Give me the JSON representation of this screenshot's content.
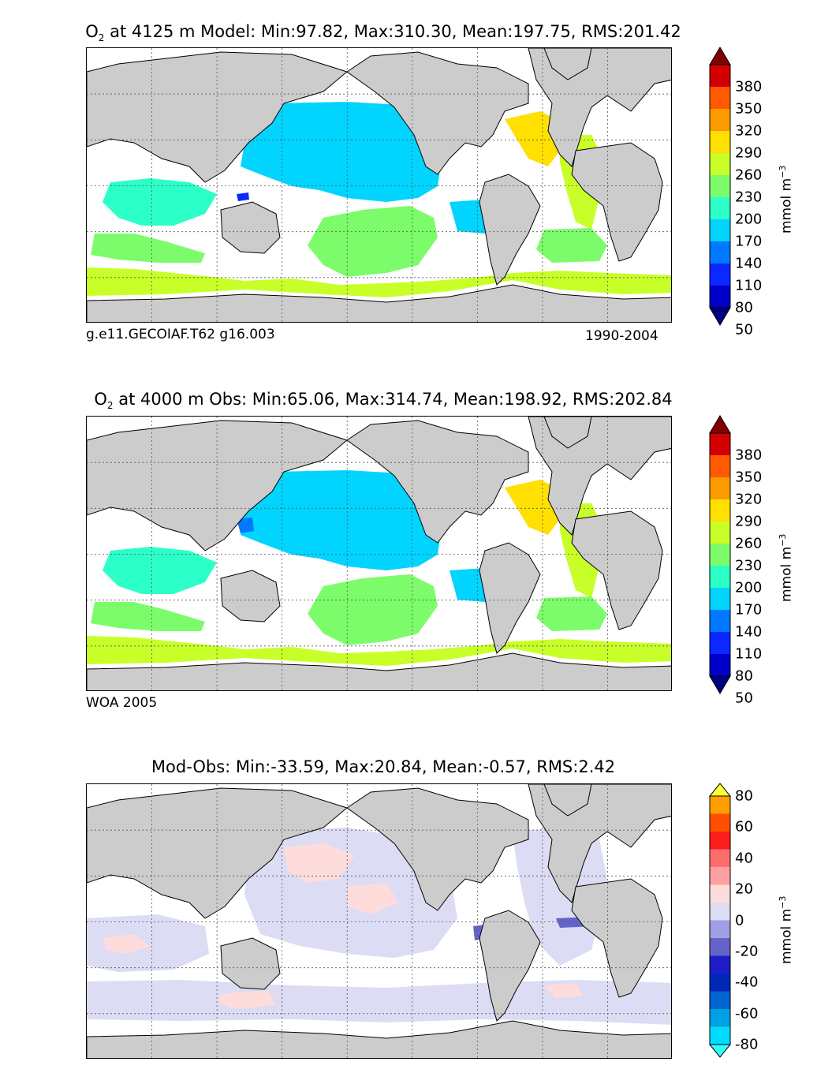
{
  "panels": {
    "model": {
      "title_species": "O",
      "title_sub": "2",
      "title_rest": " at 4125 m Model: Min:97.82, Max:310.30, Mean:197.75, RMS:201.42",
      "caption_left": "g.e11.GECOIAF.T62 g16.003",
      "caption_right": "1990-2004"
    },
    "obs": {
      "title_species": "O",
      "title_sub": "2",
      "title_rest": " at 4000 m Obs: Min:65.06, Max:314.74, Mean:198.92, RMS:202.84",
      "caption_left": "WOA 2005"
    },
    "diff": {
      "title": "Mod-Obs: Min:-33.59, Max:20.84, Mean:-0.57, RMS:2.42"
    }
  },
  "colorbar_abs": {
    "labels": [
      "380",
      "350",
      "320",
      "290",
      "260",
      "230",
      "200",
      "170",
      "140",
      "110",
      "80",
      "50"
    ],
    "colors": [
      "#7f0000",
      "#d40000",
      "#ff5a00",
      "#ff9a00",
      "#ffe000",
      "#c8ff28",
      "#7cfc6a",
      "#2cffc8",
      "#00d4ff",
      "#0078ff",
      "#0a28ff",
      "#0000c8",
      "#00007f"
    ],
    "unit": "mmol m",
    "unit_sup": "−3"
  },
  "colorbar_diff": {
    "labels": [
      "80",
      "60",
      "40",
      "20",
      "0",
      "-20",
      "-40",
      "-60",
      "-80"
    ],
    "colors": [
      "#ffff32",
      "#ffa000",
      "#ff5000",
      "#ff1e1e",
      "#ff6e6e",
      "#ffa0a0",
      "#ffdcdc",
      "#dcdcf5",
      "#a0a0e6",
      "#6464c8",
      "#1e1ec8",
      "#0028b4",
      "#0064d2",
      "#00a0e6",
      "#00dcff",
      "#32ffff"
    ],
    "unit": "mmol m",
    "unit_sup": "−3"
  },
  "map_colors": {
    "land": "#cccccc",
    "coast": "#000000",
    "grid": "#555555"
  }
}
